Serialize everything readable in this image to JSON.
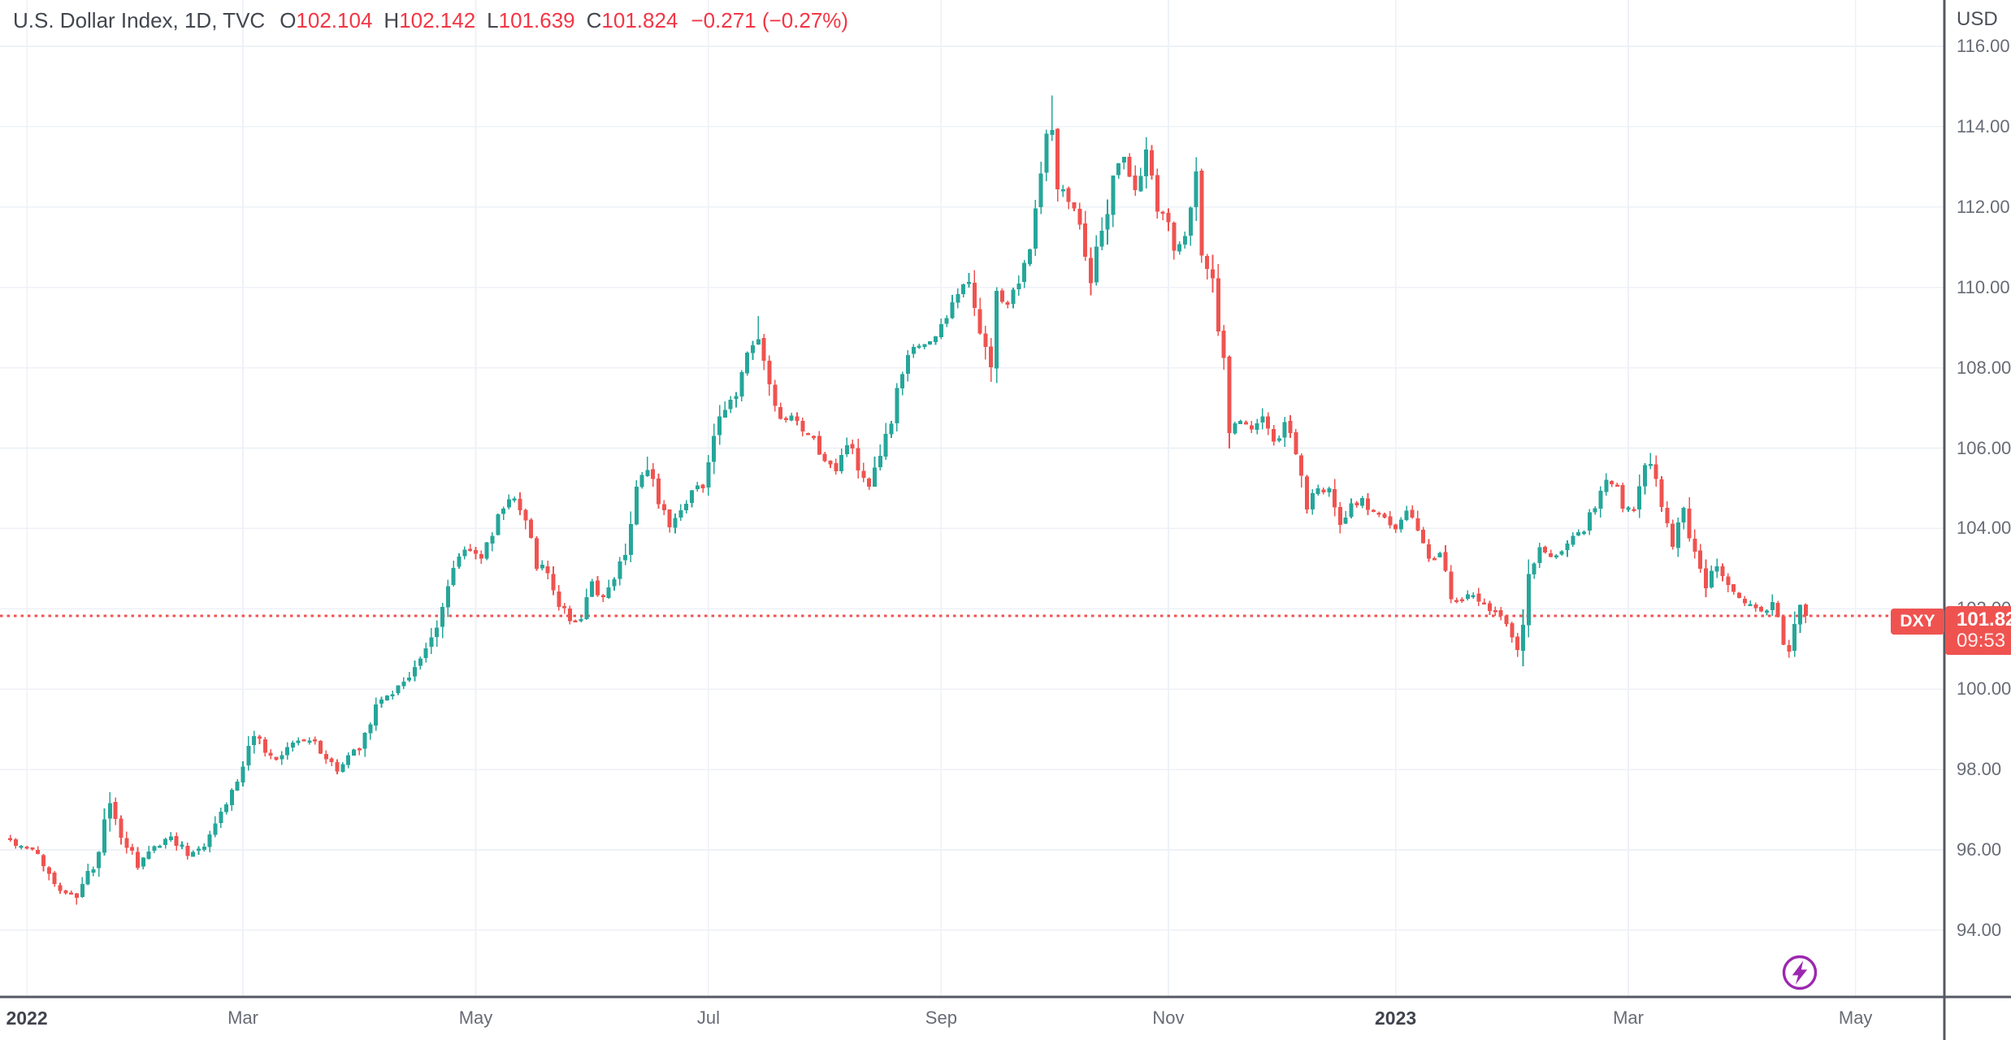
{
  "legend": {
    "symbol_title": "U.S. Dollar Index, 1D, TVC",
    "ohlc": [
      {
        "label": "O",
        "value": "102.104"
      },
      {
        "label": "H",
        "value": "102.142"
      },
      {
        "label": "L",
        "value": "101.639"
      },
      {
        "label": "C",
        "value": "101.824"
      }
    ],
    "change": "−0.271 (−0.27%)"
  },
  "price_axis": {
    "currency_label": "USD",
    "ticks": [
      {
        "value": 116,
        "label": "116.00"
      },
      {
        "value": 114,
        "label": "114.00"
      },
      {
        "value": 112,
        "label": "112.00"
      },
      {
        "value": 110,
        "label": "110.00"
      },
      {
        "value": 108,
        "label": "108.00"
      },
      {
        "value": 106,
        "label": "106.00"
      },
      {
        "value": 104,
        "label": "104.00"
      },
      {
        "value": 102,
        "label": "102.00"
      },
      {
        "value": 100,
        "label": "100.00"
      },
      {
        "value": 98,
        "label": "98.00"
      },
      {
        "value": 96,
        "label": "96.00"
      },
      {
        "value": 94,
        "label": "94.00"
      }
    ],
    "last_price_label": "101.82",
    "countdown": "09:53"
  },
  "time_axis": {
    "ticks": [
      {
        "label": "2022",
        "day": 3,
        "major": true
      },
      {
        "label": "Mar",
        "day": 42,
        "major": false
      },
      {
        "label": "May",
        "day": 84,
        "major": false
      },
      {
        "label": "Jul",
        "day": 126,
        "major": false
      },
      {
        "label": "Sep",
        "day": 168,
        "major": false
      },
      {
        "label": "Nov",
        "day": 209,
        "major": false
      },
      {
        "label": "2023",
        "day": 250,
        "major": true
      },
      {
        "label": "Mar",
        "day": 292,
        "major": false
      },
      {
        "label": "May",
        "day": 333,
        "major": false
      }
    ]
  },
  "price_line": {
    "symbol": "DXY",
    "price": 101.824
  },
  "colors": {
    "up": "#26a69a",
    "down": "#ef5350",
    "price_line": "#ef5350",
    "grid": "#eef1f7",
    "axis_line": "#555963",
    "axis_text": "#676b76",
    "axis_text_strong": "#40434d",
    "legend_text": "#42464e",
    "legend_value": "#f23645",
    "label_bg": "#ef5350",
    "quick_trade": "#9c27b0"
  },
  "chart_data": {
    "type": "candlestick",
    "symbol": "DXY",
    "title": "U.S. Dollar Index, 1D, TVC",
    "timeframe": "1D",
    "currency": "USD",
    "ylim": [
      92.4,
      117.1
    ],
    "grid": true,
    "bar_count": 325,
    "last_candle": {
      "open": 102.104,
      "high": 102.142,
      "low": 101.639,
      "close": 101.824
    },
    "trend_anchors": [
      [
        0,
        96.25
      ],
      [
        2,
        96.05
      ],
      [
        4,
        96.0
      ],
      [
        6,
        95.65
      ],
      [
        8,
        95.15
      ],
      [
        10,
        94.95
      ],
      [
        12,
        94.85
      ],
      [
        14,
        95.35
      ],
      [
        16,
        95.9
      ],
      [
        18,
        97.15
      ],
      [
        20,
        96.35
      ],
      [
        23,
        95.6
      ],
      [
        26,
        96.05
      ],
      [
        29,
        96.35
      ],
      [
        32,
        95.9
      ],
      [
        35,
        96.15
      ],
      [
        38,
        96.95
      ],
      [
        40,
        97.45
      ],
      [
        42,
        98.05
      ],
      [
        44,
        98.95
      ],
      [
        46,
        98.35
      ],
      [
        48,
        98.2
      ],
      [
        51,
        98.65
      ],
      [
        54,
        98.8
      ],
      [
        57,
        98.3
      ],
      [
        59,
        97.95
      ],
      [
        61,
        98.35
      ],
      [
        63,
        98.6
      ],
      [
        66,
        99.6
      ],
      [
        69,
        99.95
      ],
      [
        72,
        100.35
      ],
      [
        75,
        100.95
      ],
      [
        77,
        101.6
      ],
      [
        79,
        102.6
      ],
      [
        81,
        103.35
      ],
      [
        83,
        103.55
      ],
      [
        85,
        103.2
      ],
      [
        87,
        103.95
      ],
      [
        89,
        104.55
      ],
      [
        91,
        104.85
      ],
      [
        93,
        104.2
      ],
      [
        95,
        103.15
      ],
      [
        97,
        102.85
      ],
      [
        99,
        102.15
      ],
      [
        101,
        101.75
      ],
      [
        103,
        101.7
      ],
      [
        105,
        102.55
      ],
      [
        107,
        102.2
      ],
      [
        109,
        102.85
      ],
      [
        111,
        103.5
      ],
      [
        113,
        105.05
      ],
      [
        115,
        105.45
      ],
      [
        117,
        104.75
      ],
      [
        119,
        104.15
      ],
      [
        121,
        104.5
      ],
      [
        123,
        104.95
      ],
      [
        125,
        105.15
      ],
      [
        127,
        106.15
      ],
      [
        129,
        107.05
      ],
      [
        131,
        107.35
      ],
      [
        133,
        108.3
      ],
      [
        135,
        108.75
      ],
      [
        137,
        107.4
      ],
      [
        139,
        106.6
      ],
      [
        141,
        106.75
      ],
      [
        143,
        106.4
      ],
      [
        145,
        106.2
      ],
      [
        147,
        105.7
      ],
      [
        149,
        105.4
      ],
      [
        151,
        106.2
      ],
      [
        153,
        105.5
      ],
      [
        155,
        104.9
      ],
      [
        157,
        105.75
      ],
      [
        159,
        106.6
      ],
      [
        161,
        107.9
      ],
      [
        163,
        108.5
      ],
      [
        165,
        108.6
      ],
      [
        167,
        108.75
      ],
      [
        169,
        109.3
      ],
      [
        171,
        109.9
      ],
      [
        173,
        110.1
      ],
      [
        175,
        109.0
      ],
      [
        177,
        108.0
      ],
      [
        178,
        109.7
      ],
      [
        180,
        109.6
      ],
      [
        182,
        110.1
      ],
      [
        184,
        111.2
      ],
      [
        186,
        112.9
      ],
      [
        187,
        113.9
      ],
      [
        188,
        114.05
      ],
      [
        189,
        112.65
      ],
      [
        191,
        112.2
      ],
      [
        193,
        111.75
      ],
      [
        195,
        110.3
      ],
      [
        197,
        111.3
      ],
      [
        199,
        112.9
      ],
      [
        201,
        113.2
      ],
      [
        203,
        112.5
      ],
      [
        205,
        113.25
      ],
      [
        207,
        112.05
      ],
      [
        209,
        111.55
      ],
      [
        210,
        111.0
      ],
      [
        212,
        111.25
      ],
      [
        214,
        112.8
      ],
      [
        215,
        110.8
      ],
      [
        217,
        110.0
      ],
      [
        219,
        108.25
      ],
      [
        220,
        106.45
      ],
      [
        222,
        106.7
      ],
      [
        224,
        106.4
      ],
      [
        226,
        106.85
      ],
      [
        228,
        106.0
      ],
      [
        230,
        106.6
      ],
      [
        232,
        105.9
      ],
      [
        234,
        104.6
      ],
      [
        236,
        104.95
      ],
      [
        238,
        104.9
      ],
      [
        240,
        104.05
      ],
      [
        242,
        104.55
      ],
      [
        244,
        104.7
      ],
      [
        246,
        104.4
      ],
      [
        248,
        104.25
      ],
      [
        250,
        104.0
      ],
      [
        252,
        104.45
      ],
      [
        254,
        104.0
      ],
      [
        256,
        103.25
      ],
      [
        258,
        103.3
      ],
      [
        260,
        102.3
      ],
      [
        262,
        102.2
      ],
      [
        264,
        102.4
      ],
      [
        266,
        102.05
      ],
      [
        268,
        101.9
      ],
      [
        270,
        101.65
      ],
      [
        272,
        101.1
      ],
      [
        273,
        101.8
      ],
      [
        274,
        102.95
      ],
      [
        276,
        103.45
      ],
      [
        278,
        103.3
      ],
      [
        280,
        103.35
      ],
      [
        282,
        103.9
      ],
      [
        284,
        104.0
      ],
      [
        286,
        104.55
      ],
      [
        288,
        105.2
      ],
      [
        290,
        104.95
      ],
      [
        291,
        104.5
      ],
      [
        293,
        104.55
      ],
      [
        295,
        105.6
      ],
      [
        296,
        105.7
      ],
      [
        298,
        104.65
      ],
      [
        300,
        103.65
      ],
      [
        302,
        104.45
      ],
      [
        304,
        103.4
      ],
      [
        306,
        102.6
      ],
      [
        308,
        103.15
      ],
      [
        310,
        102.5
      ],
      [
        312,
        102.2
      ],
      [
        314,
        102.1
      ],
      [
        316,
        101.9
      ],
      [
        318,
        102.15
      ],
      [
        320,
        101.25
      ],
      [
        321,
        101.1
      ],
      [
        322,
        101.8
      ],
      [
        323,
        102.1
      ],
      [
        324,
        101.82
      ]
    ],
    "extremes": [
      {
        "day": 12,
        "low": 94.63
      },
      {
        "day": 18,
        "high": 97.44
      },
      {
        "day": 115,
        "high": 105.79
      },
      {
        "day": 135,
        "high": 109.29
      },
      {
        "day": 188,
        "high": 114.78
      },
      {
        "day": 296,
        "high": 105.88
      },
      {
        "day": 272,
        "low": 100.8
      },
      {
        "day": 321,
        "low": 100.78
      }
    ]
  }
}
